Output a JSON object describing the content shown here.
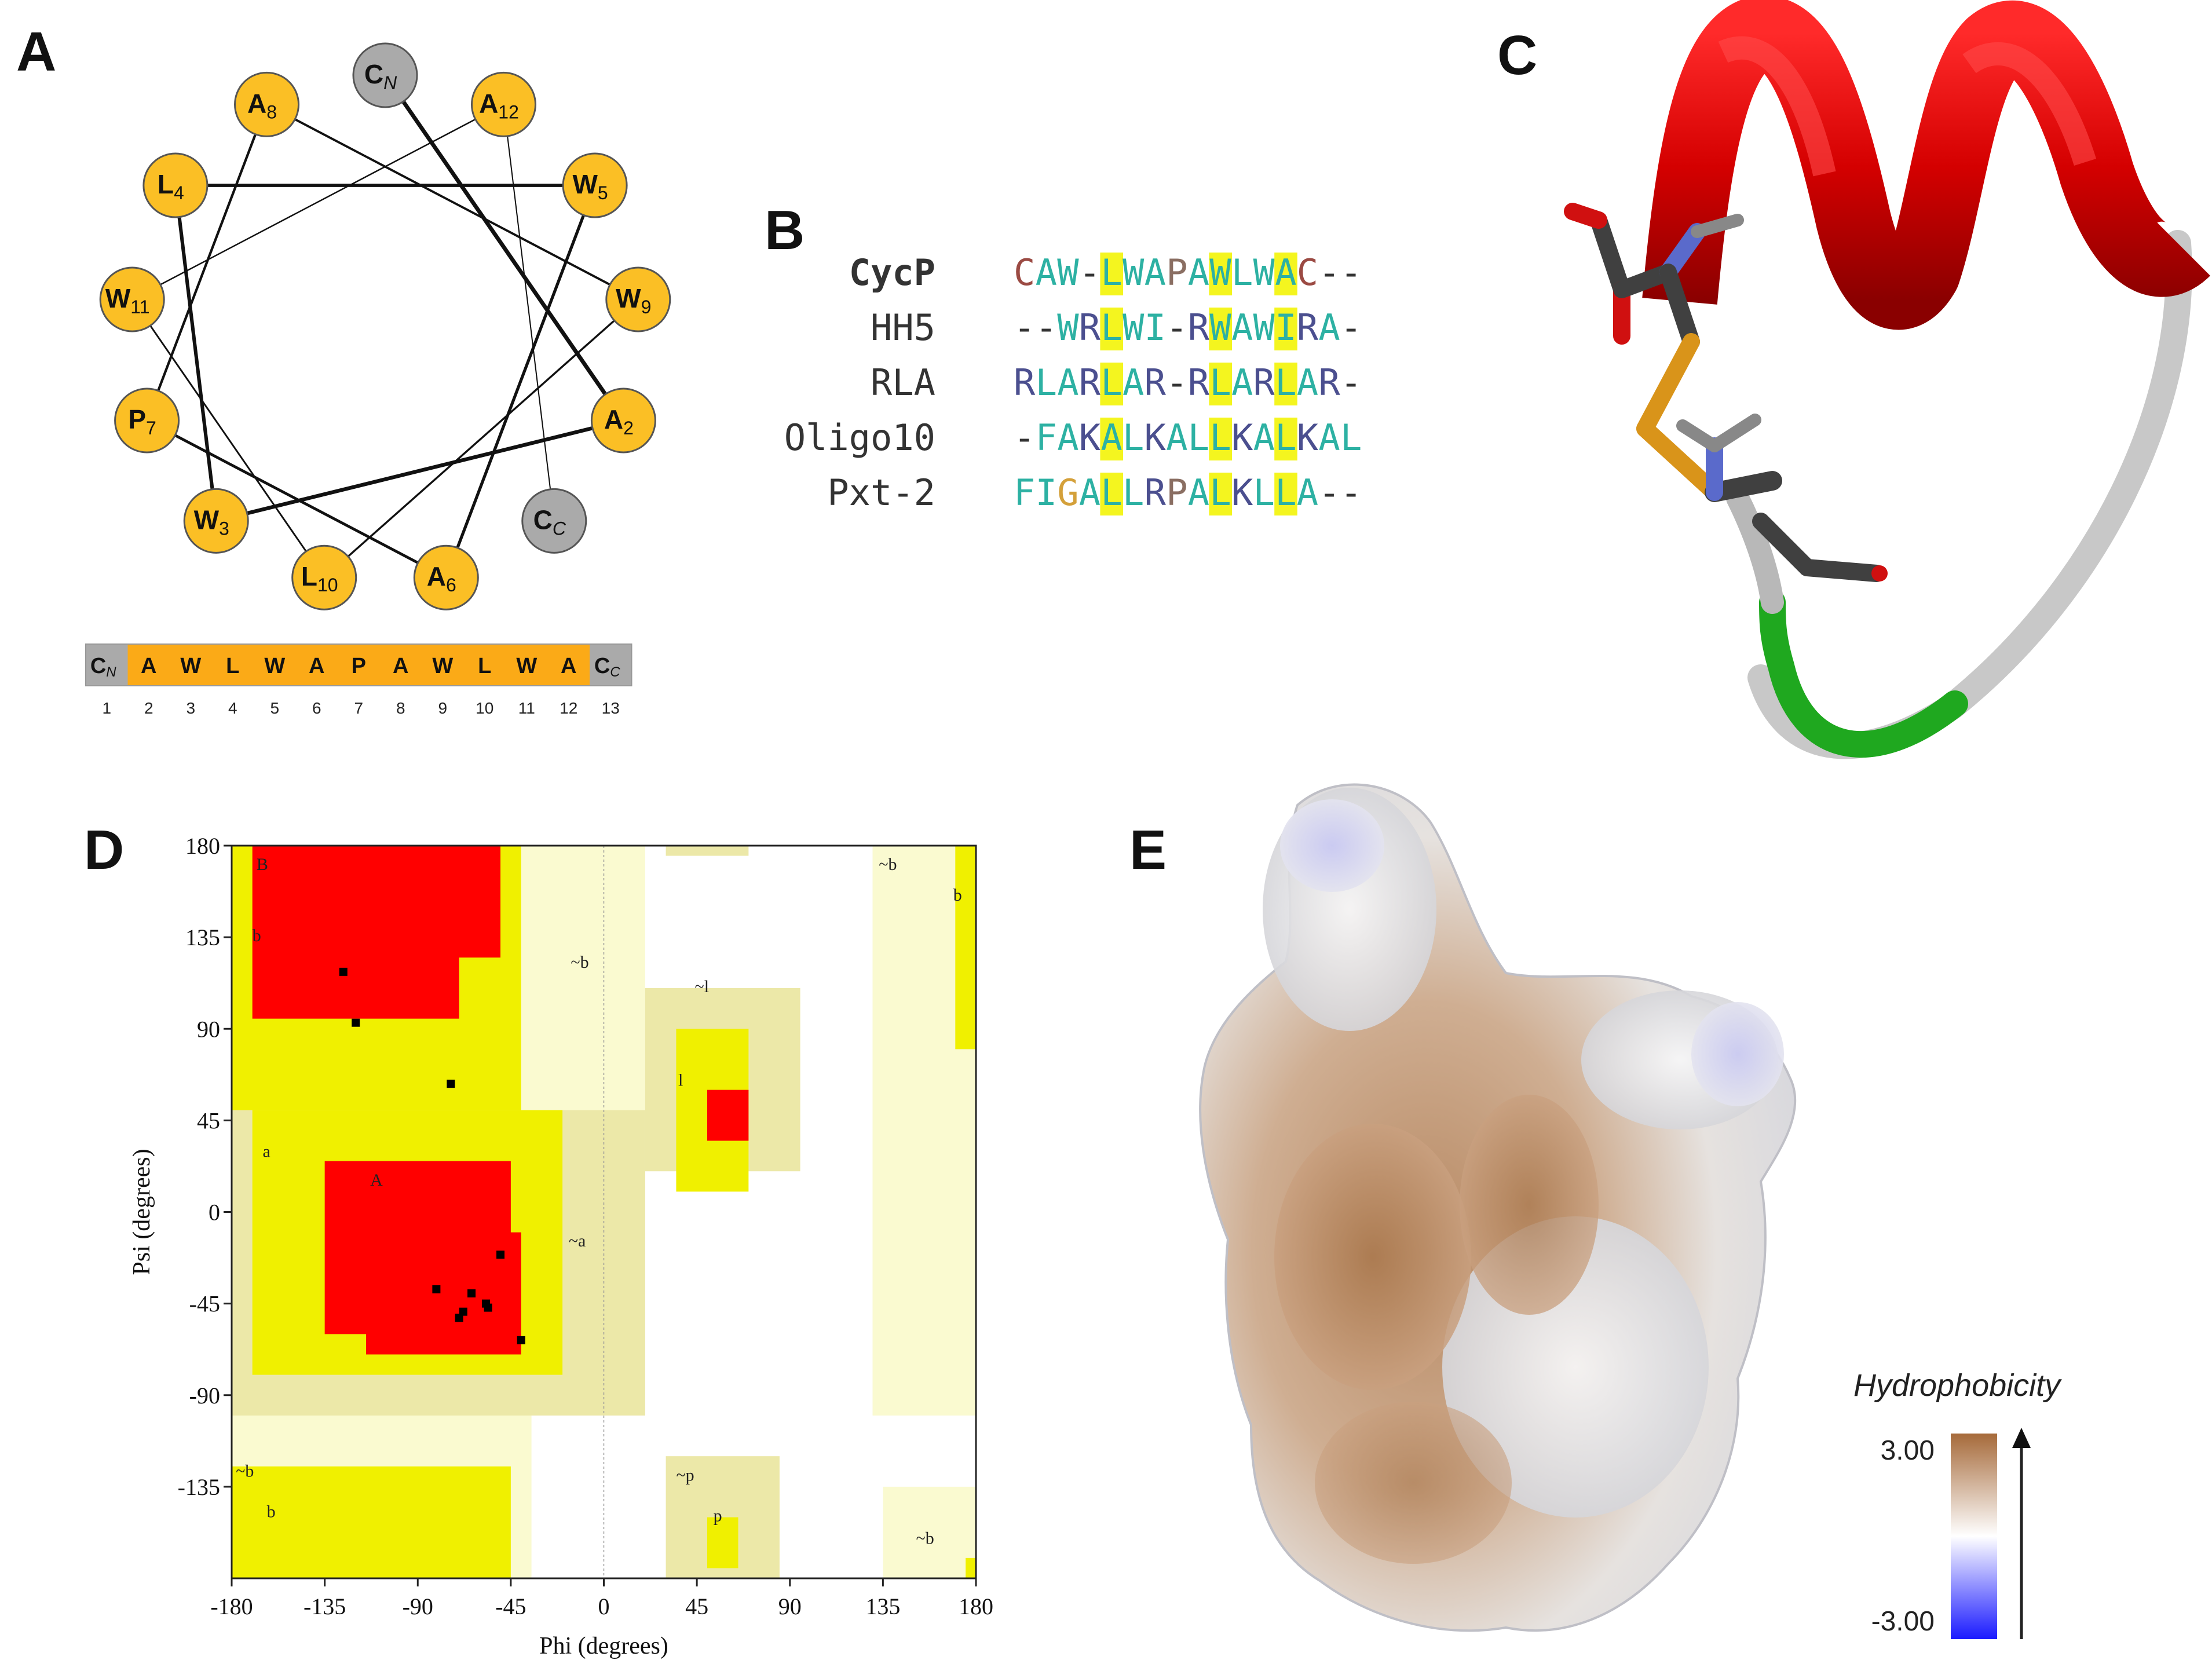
{
  "panels": {
    "a": "A",
    "b": "B",
    "c": "C",
    "d": "D",
    "e": "E"
  },
  "helical_wheel": {
    "nodes": [
      {
        "letter": "C",
        "sub": "N",
        "sub_italic": true,
        "color": "#aaaaaa"
      },
      {
        "letter": "A",
        "sub": "12",
        "sub_italic": false,
        "color": "#fbbf25"
      },
      {
        "letter": "W",
        "sub": "5",
        "sub_italic": false,
        "color": "#fbbf25"
      },
      {
        "letter": "W",
        "sub": "9",
        "sub_italic": false,
        "color": "#fbbf25"
      },
      {
        "letter": "A",
        "sub": "2",
        "sub_italic": false,
        "color": "#fbbf25"
      },
      {
        "letter": "C",
        "sub": "C",
        "sub_italic": true,
        "color": "#aaaaaa"
      },
      {
        "letter": "A",
        "sub": "6",
        "sub_italic": false,
        "color": "#fbbf25"
      },
      {
        "letter": "L",
        "sub": "10",
        "sub_italic": false,
        "color": "#fbbf25"
      },
      {
        "letter": "W",
        "sub": "3",
        "sub_italic": false,
        "color": "#fbbf25"
      },
      {
        "letter": "P",
        "sub": "7",
        "sub_italic": false,
        "color": "#fbbf25"
      },
      {
        "letter": "W",
        "sub": "11",
        "sub_italic": false,
        "color": "#fbbf25"
      },
      {
        "letter": "L",
        "sub": "4",
        "sub_italic": false,
        "color": "#fbbf25"
      },
      {
        "letter": "A",
        "sub": "8",
        "sub_italic": false,
        "color": "#fbbf25"
      }
    ]
  },
  "sequence_bar": {
    "residues": [
      {
        "letter": "C",
        "sub": "N",
        "color": "#aaaaaa"
      },
      {
        "letter": "A",
        "sub": "",
        "color": "#fbaa17"
      },
      {
        "letter": "W",
        "sub": "",
        "color": "#fbaa17"
      },
      {
        "letter": "L",
        "sub": "",
        "color": "#fbaa17"
      },
      {
        "letter": "W",
        "sub": "",
        "color": "#fbaa17"
      },
      {
        "letter": "A",
        "sub": "",
        "color": "#fbaa17"
      },
      {
        "letter": "P",
        "sub": "",
        "color": "#fbaa17"
      },
      {
        "letter": "A",
        "sub": "",
        "color": "#fbaa17"
      },
      {
        "letter": "W",
        "sub": "",
        "color": "#fbaa17"
      },
      {
        "letter": "L",
        "sub": "",
        "color": "#fbaa17"
      },
      {
        "letter": "W",
        "sub": "",
        "color": "#fbaa17"
      },
      {
        "letter": "A",
        "sub": "",
        "color": "#fbaa17"
      },
      {
        "letter": "C",
        "sub": "C",
        "color": "#aaaaaa"
      }
    ],
    "numbers": [
      "1",
      "2",
      "3",
      "4",
      "5",
      "6",
      "7",
      "8",
      "9",
      "10",
      "11",
      "12",
      "13"
    ]
  },
  "alignment": {
    "rows": [
      {
        "name": "CycP",
        "bold": true,
        "seq": "CAW-LWAPAWLWAC--"
      },
      {
        "name": "HH5",
        "bold": false,
        "seq": "--WRLWI-RWAWIRA-"
      },
      {
        "name": "RLA",
        "bold": false,
        "seq": "RLARLAR-RLARLAR-"
      },
      {
        "name": "Oligo10",
        "bold": false,
        "seq": "-FAKALKALLKALKAL"
      },
      {
        "name": "Pxt-2",
        "bold": false,
        "seq": "FIGALLRPALKLLA--"
      }
    ],
    "highlight_columns": [
      4,
      9,
      12
    ],
    "colors": {
      "W": "#2db1a3",
      "A": "#2db1a3",
      "F": "#2db1a3",
      "I": "#2db1a3",
      "L": "#2db1a3",
      "C": "#9b4a43",
      "P": "#8a6e62",
      "G": "#d4a03a",
      "R": "#4b4f8f",
      "K": "#4b4f8f",
      "-": "#333333",
      "highlight": "#f4f51f"
    }
  },
  "ramachandran": {
    "x_ticks": [
      "-180",
      "-135",
      "-90",
      "-45",
      "0",
      "45",
      "90",
      "135",
      "180"
    ],
    "y_ticks": [
      "180",
      "135",
      "90",
      "45",
      "0",
      "-45",
      "-90",
      "-135"
    ],
    "x_label": "Phi (degrees)",
    "y_label": "Psi (degrees)",
    "region_labels": [
      {
        "text": "B",
        "phi": -168,
        "psi": 168
      },
      {
        "text": "b",
        "phi": -170,
        "psi": 133
      },
      {
        "text": "~b",
        "phi": -16,
        "psi": 120
      },
      {
        "text": "a",
        "phi": -165,
        "psi": 27
      },
      {
        "text": "A",
        "phi": -113,
        "psi": 13
      },
      {
        "text": "~a",
        "phi": -17,
        "psi": -17
      },
      {
        "text": "~l",
        "phi": 44,
        "psi": 108
      },
      {
        "text": "l",
        "phi": 36,
        "psi": 62
      },
      {
        "text": "~b",
        "phi": 133,
        "psi": 168
      },
      {
        "text": "b",
        "phi": 169,
        "psi": 153
      },
      {
        "text": "~b",
        "phi": -178,
        "psi": -130
      },
      {
        "text": "b",
        "phi": -163,
        "psi": -150
      },
      {
        "text": "~p",
        "phi": 35,
        "psi": -132
      },
      {
        "text": "p",
        "phi": 53,
        "psi": -152
      },
      {
        "text": "~b",
        "phi": 151,
        "psi": -163
      }
    ],
    "points": [
      {
        "phi": -126,
        "psi": 118
      },
      {
        "phi": -120,
        "psi": 93
      },
      {
        "phi": -74,
        "psi": 63
      },
      {
        "phi": -50,
        "psi": -21
      },
      {
        "phi": -81,
        "psi": -38
      },
      {
        "phi": -64,
        "psi": -40
      },
      {
        "phi": -57,
        "psi": -45
      },
      {
        "phi": -68,
        "psi": -49
      },
      {
        "phi": -56,
        "psi": -47
      },
      {
        "phi": -70,
        "psi": -52
      },
      {
        "phi": -40,
        "psi": -63
      }
    ]
  },
  "hydrophobicity": {
    "title": "Hydrophobicity",
    "max": "3.00",
    "min": "-3.00",
    "colors": {
      "high": "#a66a3a",
      "mid": "#ffffff",
      "low": "#1a1aff"
    }
  }
}
